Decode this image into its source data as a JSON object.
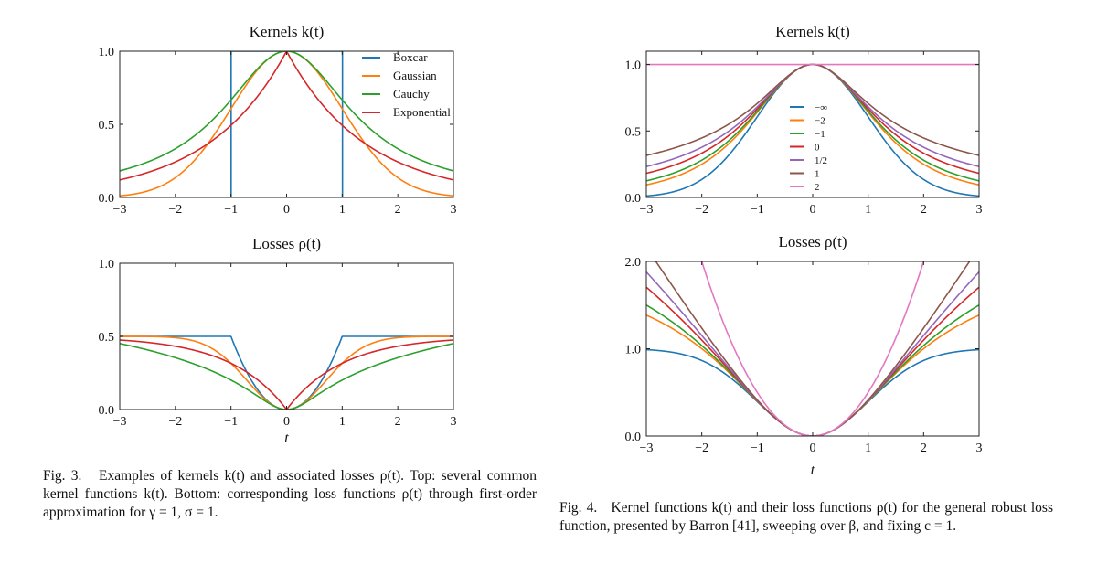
{
  "figures": [
    {
      "panels": [
        {
          "title": "Kernels k(t)",
          "xlabel": "",
          "type": "line",
          "xlim": [
            -3,
            3
          ],
          "ylim": [
            0,
            1
          ],
          "xticks": [
            -3,
            -2,
            -1,
            0,
            1,
            2,
            3
          ],
          "yticks": [
            0,
            0.5,
            1
          ],
          "xtick_labels": [
            "−3",
            "−2",
            "−1",
            "0",
            "1",
            "2",
            "3"
          ],
          "ytick_labels": [
            "0.0",
            "0.5",
            "1.0"
          ],
          "legend": "top-right",
          "series": [
            {
              "name": "Boxcar",
              "fn": "boxcar_k"
            },
            {
              "name": "Gaussian",
              "fn": "gauss_k"
            },
            {
              "name": "Cauchy",
              "fn": "cauchy_k"
            },
            {
              "name": "Exponential",
              "fn": "exp_k"
            }
          ]
        },
        {
          "title": "Losses ρ(t)",
          "xlabel": "t",
          "type": "line",
          "xlim": [
            -3,
            3
          ],
          "ylim": [
            0,
            1
          ],
          "xticks": [
            -3,
            -2,
            -1,
            0,
            1,
            2,
            3
          ],
          "yticks": [
            0,
            0.5,
            1
          ],
          "xtick_labels": [
            "−3",
            "−2",
            "−1",
            "0",
            "1",
            "2",
            "3"
          ],
          "ytick_labels": [
            "0.0",
            "0.5",
            "1.0"
          ],
          "series": [
            {
              "name": "Boxcar",
              "fn": "boxcar_r"
            },
            {
              "name": "Gaussian",
              "fn": "gauss_r"
            },
            {
              "name": "Cauchy",
              "fn": "cauchy_r"
            },
            {
              "name": "Exponential",
              "fn": "exp_r"
            }
          ]
        }
      ],
      "caption": {
        "label": "Fig. 3.",
        "text": "Examples of kernels k(t) and associated losses ρ(t). Top: several common kernel functions k(t). Bottom: corresponding loss functions ρ(t) through first-order approximation for γ = 1, σ = 1."
      }
    },
    {
      "panels": [
        {
          "title": "Kernels k(t)",
          "xlabel": "",
          "type": "line",
          "xlim": [
            -3,
            3
          ],
          "ylim": [
            0,
            1.1
          ],
          "xticks": [
            -3,
            -2,
            -1,
            0,
            1,
            2,
            3
          ],
          "yticks": [
            0,
            0.5,
            1
          ],
          "xtick_labels": [
            "−3",
            "−2",
            "−1",
            "0",
            "1",
            "2",
            "3"
          ],
          "ytick_labels": [
            "0.0",
            "0.5",
            "1.0"
          ],
          "legend": "center",
          "series": [
            {
              "name": "−∞",
              "beta": "-inf"
            },
            {
              "name": "−2",
              "beta": -2
            },
            {
              "name": "−1",
              "beta": -1
            },
            {
              "name": "0",
              "beta": 0
            },
            {
              "name": "1/2",
              "beta": 0.5
            },
            {
              "name": "1",
              "beta": 1
            },
            {
              "name": "2",
              "beta": 2
            }
          ]
        },
        {
          "title": "Losses ρ(t)",
          "xlabel": "t",
          "type": "line",
          "xlim": [
            -3,
            3
          ],
          "ylim": [
            0,
            2
          ],
          "xticks": [
            -3,
            -2,
            -1,
            0,
            1,
            2,
            3
          ],
          "yticks": [
            0,
            1,
            2
          ],
          "xtick_labels": [
            "−3",
            "−2",
            "−1",
            "0",
            "1",
            "2",
            "3"
          ],
          "ytick_labels": [
            "0.0",
            "1.0",
            "2.0"
          ],
          "series": [
            {
              "name": "−∞",
              "beta": "-inf"
            },
            {
              "name": "−2",
              "beta": -2
            },
            {
              "name": "−1",
              "beta": -1
            },
            {
              "name": "0",
              "beta": 0
            },
            {
              "name": "1/2",
              "beta": 0.5
            },
            {
              "name": "1",
              "beta": 1
            },
            {
              "name": "2",
              "beta": 2
            }
          ]
        }
      ],
      "caption": {
        "label": "Fig. 4.",
        "text": "Kernel functions k(t) and their loss functions ρ(t) for the general robust loss function, presented by Barron [41], sweeping over β, and fixing c = 1."
      }
    }
  ],
  "colors": {
    "blue": "#1f77b4",
    "orange": "#ff7f0e",
    "green": "#2ca02c",
    "red": "#d62728",
    "purple": "#9467bd",
    "brown": "#8c564b",
    "pink": "#e377c2"
  }
}
